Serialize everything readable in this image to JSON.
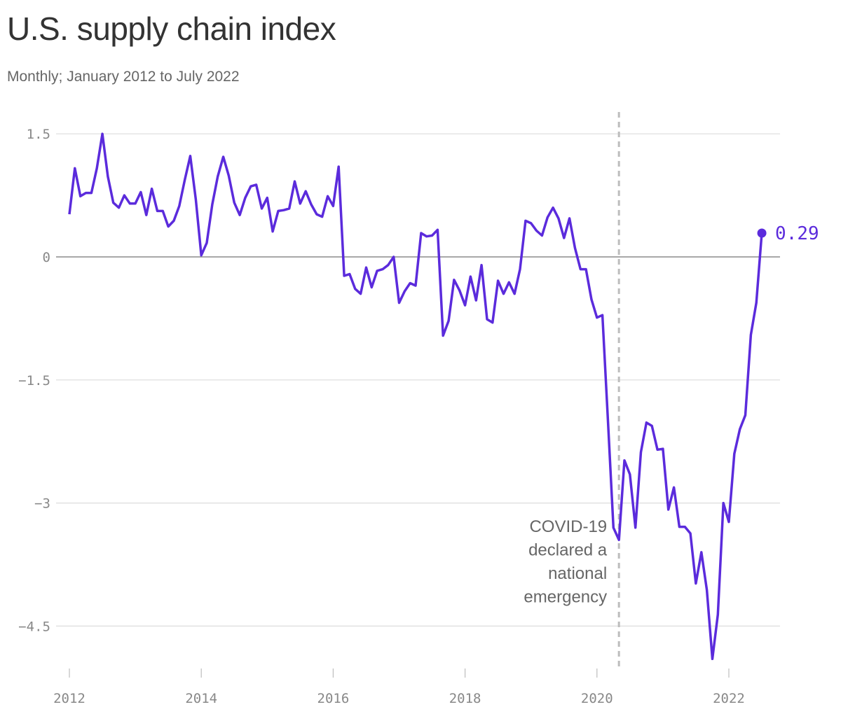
{
  "chart_data": {
    "type": "line",
    "title": "U.S. supply chain index",
    "subtitle": "Monthly; January 2012 to July 2022",
    "xlabel": "",
    "ylabel": "",
    "ylim": [
      -4.9,
      1.5
    ],
    "xlim": [
      "2012-01",
      "2022-12"
    ],
    "y_ticks": [
      1.5,
      0,
      -1.5,
      -3,
      -4.5
    ],
    "y_tick_labels": [
      "1.5",
      "0",
      "−1.5",
      "−3",
      "−4.5"
    ],
    "x_ticks": [
      "2012-01",
      "2014-01",
      "2016-01",
      "2018-01",
      "2020-01",
      "2022-01"
    ],
    "x_tick_labels": [
      "2012",
      "2014",
      "2016",
      "2018",
      "2020",
      "2022"
    ],
    "grid": true,
    "line_color": "#5b2bdc",
    "annotation": {
      "date": "2020-05",
      "lines": [
        "COVID-19",
        "declared a",
        "national",
        "emergency"
      ]
    },
    "end_label": "0.29",
    "series": [
      {
        "dates": [
          "2012-01",
          "2012-02",
          "2012-03",
          "2012-04",
          "2012-05",
          "2012-06",
          "2012-07",
          "2012-08",
          "2012-09",
          "2012-10",
          "2012-11",
          "2012-12",
          "2013-01",
          "2013-02",
          "2013-03",
          "2013-04",
          "2013-05",
          "2013-06",
          "2013-07",
          "2013-08",
          "2013-09",
          "2013-10",
          "2013-11",
          "2013-12",
          "2014-01",
          "2014-02",
          "2014-03",
          "2014-04",
          "2014-05",
          "2014-06",
          "2014-07",
          "2014-08",
          "2014-09",
          "2014-10",
          "2014-11",
          "2014-12",
          "2015-01",
          "2015-02",
          "2015-03",
          "2015-04",
          "2015-05",
          "2015-06",
          "2015-07",
          "2015-08",
          "2015-09",
          "2015-10",
          "2015-11",
          "2015-12",
          "2016-01",
          "2016-02",
          "2016-03",
          "2016-04",
          "2016-05",
          "2016-06",
          "2016-07",
          "2016-08",
          "2016-09",
          "2016-10",
          "2016-11",
          "2016-12",
          "2017-01",
          "2017-02",
          "2017-03",
          "2017-04",
          "2017-05",
          "2017-06",
          "2017-07",
          "2017-08",
          "2017-09",
          "2017-10",
          "2017-11",
          "2017-12",
          "2018-01",
          "2018-02",
          "2018-03",
          "2018-04",
          "2018-05",
          "2018-06",
          "2018-07",
          "2018-08",
          "2018-09",
          "2018-10",
          "2018-11",
          "2018-12",
          "2019-01",
          "2019-02",
          "2019-03",
          "2019-04",
          "2019-05",
          "2019-06",
          "2019-07",
          "2019-08",
          "2019-09",
          "2019-10",
          "2019-11",
          "2019-12",
          "2020-01",
          "2020-02",
          "2020-03",
          "2020-04",
          "2020-05",
          "2020-06",
          "2020-07",
          "2020-08",
          "2020-09",
          "2020-10",
          "2020-11",
          "2020-12",
          "2021-01",
          "2021-02",
          "2021-03",
          "2021-04",
          "2021-05",
          "2021-06",
          "2021-07",
          "2021-08",
          "2021-09",
          "2021-10",
          "2021-11",
          "2021-12",
          "2022-01",
          "2022-02",
          "2022-03",
          "2022-04",
          "2022-05",
          "2022-06",
          "2022-07"
        ],
        "values": [
          0.52,
          1.08,
          0.74,
          0.78,
          0.78,
          1.08,
          1.5,
          0.98,
          0.66,
          0.6,
          0.75,
          0.65,
          0.65,
          0.79,
          0.51,
          0.83,
          0.56,
          0.56,
          0.37,
          0.44,
          0.62,
          0.94,
          1.23,
          0.7,
          0.02,
          0.17,
          0.64,
          0.98,
          1.22,
          0.99,
          0.66,
          0.51,
          0.72,
          0.86,
          0.88,
          0.59,
          0.72,
          0.31,
          0.56,
          0.57,
          0.59,
          0.92,
          0.65,
          0.8,
          0.64,
          0.52,
          0.49,
          0.74,
          0.62,
          1.1,
          -0.23,
          -0.21,
          -0.39,
          -0.45,
          -0.13,
          -0.37,
          -0.17,
          -0.15,
          -0.1,
          0.0,
          -0.56,
          -0.42,
          -0.32,
          -0.35,
          0.29,
          0.25,
          0.26,
          0.33,
          -0.96,
          -0.78,
          -0.28,
          -0.41,
          -0.59,
          -0.24,
          -0.53,
          -0.1,
          -0.76,
          -0.8,
          -0.29,
          -0.45,
          -0.31,
          -0.45,
          -0.15,
          0.44,
          0.41,
          0.32,
          0.26,
          0.48,
          0.6,
          0.47,
          0.23,
          0.47,
          0.11,
          -0.15,
          -0.15,
          -0.52,
          -0.74,
          -0.71,
          -2.0,
          -3.3,
          -3.45,
          -2.48,
          -2.65,
          -3.3,
          -2.38,
          -2.02,
          -2.06,
          -2.35,
          -2.34,
          -3.08,
          -2.81,
          -3.29,
          -3.29,
          -3.37,
          -3.98,
          -3.6,
          -4.06,
          -4.9,
          -4.36,
          -3.0,
          -3.23,
          -2.4,
          -2.1,
          -1.93,
          -0.95,
          -0.56,
          0.29
        ]
      }
    ]
  }
}
